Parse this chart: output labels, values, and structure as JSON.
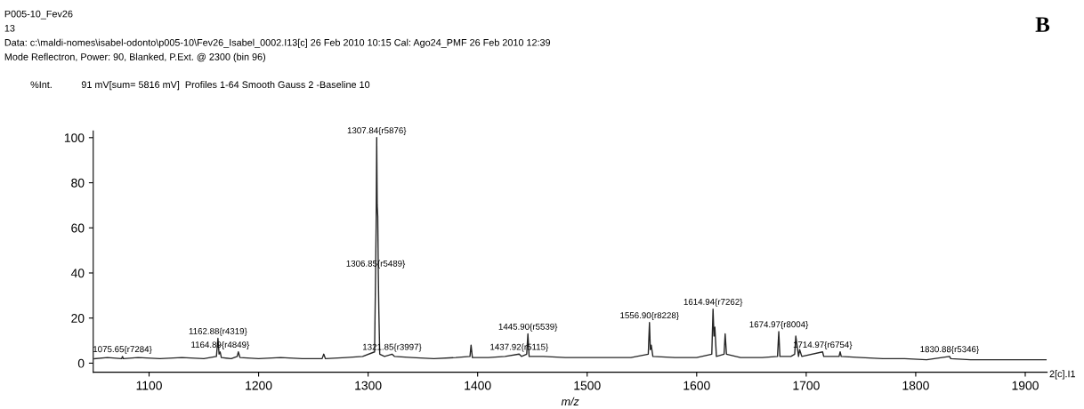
{
  "chart_data": {
    "type": "line",
    "title": "P005-10_Fev26",
    "xlabel": "m/z",
    "ylabel": "%Int.",
    "xlim": [
      1049,
      1920
    ],
    "ylim": [
      -4,
      103
    ],
    "xticks": [
      1100,
      1200,
      1300,
      1400,
      1500,
      1600,
      1700,
      1800,
      1900
    ],
    "yticks": [
      0,
      20,
      40,
      60,
      80,
      100
    ],
    "grid": false,
    "marker": "none",
    "line_style": "solid",
    "series": [
      {
        "color": "#262626",
        "x": [
          1050,
          1062,
          1075,
          1075.65,
          1076.5,
          1090,
          1110,
          1130,
          1150,
          1161.5,
          1162.88,
          1163.9,
          1164.89,
          1166,
          1175,
          1180.5,
          1181.5,
          1183,
          1200,
          1220,
          1240,
          1258,
          1259.5,
          1261,
          1280,
          1295,
          1305.9,
          1306.85,
          1307.3,
          1307.84,
          1308.3,
          1308.8,
          1309.3,
          1309.8,
          1310.6,
          1315,
          1321.85,
          1324,
          1340,
          1360,
          1380,
          1393,
          1394,
          1395.2,
          1410,
          1425,
          1437.92,
          1440,
          1444.8,
          1445.9,
          1447,
          1460,
          1480,
          1500,
          1520,
          1540,
          1555.8,
          1556.9,
          1557.7,
          1558.5,
          1560,
          1580,
          1600,
          1613.8,
          1614.94,
          1615.8,
          1616.6,
          1618,
          1625,
          1626,
          1627.2,
          1640,
          1660,
          1673.8,
          1674.97,
          1676,
          1686,
          1689.5,
          1690.5,
          1693,
          1694,
          1696,
          1714.97,
          1716,
          1730,
          1731,
          1732,
          1750,
          1770,
          1790,
          1810,
          1830.88,
          1832,
          1850,
          1870,
          1890,
          1910,
          1919
        ],
        "values": [
          2,
          2.5,
          2,
          3,
          2,
          2.5,
          2,
          2.5,
          2,
          3,
          11,
          4,
          5,
          2.5,
          2,
          3,
          5,
          2.5,
          2,
          2.5,
          2,
          2,
          4,
          2,
          2.5,
          3,
          5,
          41,
          60,
          100,
          70,
          65,
          40,
          23,
          4,
          3,
          4,
          3,
          2.5,
          2,
          2.5,
          3,
          8,
          2.5,
          2.5,
          3,
          4,
          3,
          4,
          13,
          3,
          3,
          2.5,
          2.5,
          2.5,
          2.5,
          4,
          18,
          6,
          8,
          3,
          2.5,
          2.5,
          4,
          24,
          12,
          16,
          3,
          4,
          13,
          4,
          2.5,
          2.5,
          3,
          14,
          3,
          3,
          4,
          12,
          3,
          6,
          3,
          5,
          3,
          3,
          5,
          3,
          2.5,
          2,
          2,
          1.5,
          3,
          2,
          1.5,
          1.5,
          1.5,
          1.5,
          1.5
        ]
      }
    ],
    "annotations": [
      "13",
      "Data: c:\\maldi-nomes\\isabel-odonto\\p005-10\\Fev26_Isabel_0002.I13[c] 26 Feb 2010 10:15 Cal: Ago24_PMF 26 Feb 2010 12:39",
      "Mode Reflectron, Power: 90, Blanked, P.Ext. @ 2300 (bin 96)",
      "91 mV[sum= 5816 mV]  Profiles 1-64 Smooth Gauss 2 -Baseline 10",
      "B",
      "2[c].I1",
      {
        "text": "1075.65{r7284}",
        "x": 1075.65,
        "y": 3
      },
      {
        "text": "1162.88{r4319}",
        "x": 1162.88,
        "y": 11
      },
      {
        "text": "1164.89{r4849}",
        "x": 1164.89,
        "y": 5
      },
      {
        "text": "1307.84{r5876}",
        "x": 1307.84,
        "y": 100
      },
      {
        "text": "1306.85{r5489}",
        "x": 1306.85,
        "y": 41
      },
      {
        "text": "1321.85{r3997}",
        "x": 1321.85,
        "y": 4
      },
      {
        "text": "1445.90{r5539}",
        "x": 1445.9,
        "y": 13
      },
      {
        "text": "1437.92{r5115}",
        "x": 1437.92,
        "y": 4
      },
      {
        "text": "1556.90{r8228}",
        "x": 1556.9,
        "y": 18
      },
      {
        "text": "1614.94{r7262}",
        "x": 1614.94,
        "y": 24
      },
      {
        "text": "1674.97{r8004}",
        "x": 1674.97,
        "y": 14
      },
      {
        "text": "1714.97{r6754}",
        "x": 1714.97,
        "y": 5
      },
      {
        "text": "1830.88{r5346}",
        "x": 1830.88,
        "y": 3
      }
    ]
  }
}
